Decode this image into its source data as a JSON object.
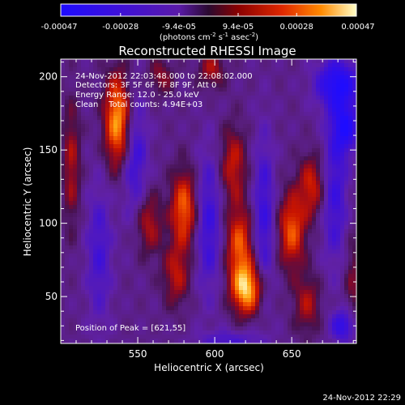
{
  "colorbar": {
    "tick_labels": [
      "-0.00047",
      "-0.00028",
      "-9.4e-05",
      "9.4e-05",
      "0.00028",
      "0.00047"
    ],
    "tick_values": [
      -0.00047,
      -0.00028,
      -9.4e-05,
      9.4e-05,
      0.00028,
      0.00047
    ],
    "range": [
      -0.00047,
      0.00047
    ],
    "unit_parts": [
      "(photons cm",
      "-2",
      " s",
      "-1",
      " asec",
      "-2",
      ")"
    ]
  },
  "chart_data": {
    "type": "heatmap",
    "title": "Reconstructed RHESSI Image",
    "xlabel": "Heliocentric X (arcsec)",
    "ylabel": "Heliocentric Y (arcsec)",
    "xlim": [
      500,
      692
    ],
    "ylim": [
      18,
      212
    ],
    "x_ticks": [
      550,
      600,
      650
    ],
    "y_ticks": [
      50,
      100,
      150,
      200
    ],
    "annotations": [
      "24-Nov-2012 22:03:48.000 to 22:08:02.000",
      "Detectors: 3F 5F 6F 7F 8F 9F, Att 0",
      "Energy Range: 12.0 - 25.0 keV",
      "Clean    Total counts: 4.94E+03"
    ],
    "peak_label": "Position of Peak = [621,55]",
    "peak": [
      621,
      55
    ],
    "value_range": [
      -0.00047,
      0.00047
    ],
    "blobs": [
      {
        "x": 537,
        "y": 170,
        "value": 0.00046,
        "sx": 6,
        "sy": 22
      },
      {
        "x": 557,
        "y": 100,
        "value": 0.00022,
        "sx": 6,
        "sy": 15
      },
      {
        "x": 575,
        "y": 65,
        "value": 0.00022,
        "sx": 6,
        "sy": 15
      },
      {
        "x": 580,
        "y": 110,
        "value": 0.00036,
        "sx": 6,
        "sy": 18
      },
      {
        "x": 621,
        "y": 55,
        "value": 0.00047,
        "sx": 7,
        "sy": 12
      },
      {
        "x": 616,
        "y": 85,
        "value": 0.00034,
        "sx": 6,
        "sy": 18
      },
      {
        "x": 612,
        "y": 140,
        "value": 0.00024,
        "sx": 6,
        "sy": 18
      },
      {
        "x": 650,
        "y": 95,
        "value": 0.00034,
        "sx": 6,
        "sy": 18
      },
      {
        "x": 660,
        "y": 45,
        "value": 0.0002,
        "sx": 6,
        "sy": 14
      },
      {
        "x": 663,
        "y": 125,
        "value": 0.00026,
        "sx": 6,
        "sy": 15
      },
      {
        "x": 598,
        "y": 205,
        "value": 0.0002,
        "sx": 6,
        "sy": 9
      },
      {
        "x": 565,
        "y": 200,
        "value": 0.00016,
        "sx": 6,
        "sy": 9
      },
      {
        "x": 507,
        "y": 140,
        "value": 0.0002,
        "sx": 4,
        "sy": 30
      },
      {
        "x": 690,
        "y": 60,
        "value": 0.00014,
        "sx": 4,
        "sy": 25
      },
      {
        "x": 548,
        "y": 145,
        "value": -0.00022,
        "sx": 6,
        "sy": 30
      },
      {
        "x": 596,
        "y": 100,
        "value": -0.00022,
        "sx": 6,
        "sy": 35
      },
      {
        "x": 632,
        "y": 105,
        "value": -0.00022,
        "sx": 5,
        "sy": 40
      },
      {
        "x": 678,
        "y": 120,
        "value": -0.00022,
        "sx": 6,
        "sy": 35
      },
      {
        "x": 525,
        "y": 80,
        "value": -0.00018,
        "sx": 6,
        "sy": 35
      },
      {
        "x": 680,
        "y": 195,
        "value": -0.00036,
        "sx": 10,
        "sy": 12
      },
      {
        "x": 685,
        "y": 165,
        "value": -0.00032,
        "sx": 6,
        "sy": 12
      },
      {
        "x": 684,
        "y": 30,
        "value": -0.00028,
        "sx": 6,
        "sy": 8
      },
      {
        "x": 610,
        "y": 20,
        "value": -0.00016,
        "sx": 15,
        "sy": 5
      }
    ]
  },
  "footer": {
    "timestamp": "24-Nov-2012 22:29"
  }
}
